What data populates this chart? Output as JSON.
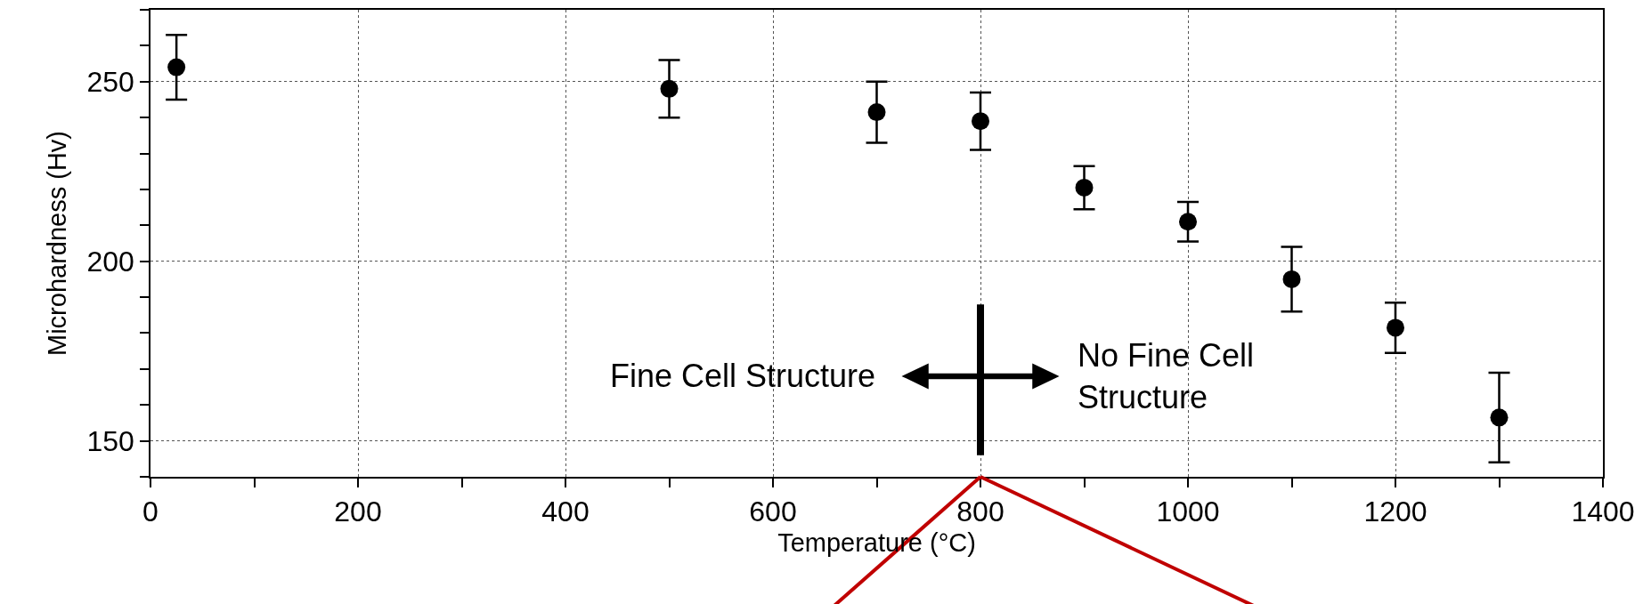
{
  "chart_data": {
    "type": "scatter",
    "xlabel": "Temperature (°C)",
    "ylabel": "Microhardness (Hv)",
    "x": [
      25,
      500,
      700,
      800,
      900,
      1000,
      1100,
      1200,
      1300
    ],
    "values": [
      254,
      248,
      241.5,
      239,
      220.5,
      211,
      195,
      181.5,
      156.5
    ],
    "errors": [
      9,
      8,
      8.5,
      8,
      6,
      5.5,
      9,
      7,
      12.5
    ],
    "color": "#000000",
    "marker": "circle",
    "xlim": [
      0,
      1400
    ],
    "ylim": [
      140,
      270
    ],
    "xticks": [
      0,
      {
        "value": 100,
        "label": null
      },
      200,
      {
        "value": 300,
        "label": null
      },
      400,
      {
        "value": 500,
        "label": null
      },
      600,
      {
        "value": 700,
        "label": null
      },
      800,
      {
        "value": 900,
        "label": null
      },
      1000,
      {
        "value": 1100,
        "label": null
      },
      1200,
      {
        "value": 1300,
        "label": null
      },
      1400
    ],
    "yticks": [
      {
        "value": 140,
        "label": null
      },
      150,
      {
        "value": 160,
        "label": null
      },
      {
        "value": 170,
        "label": null
      },
      {
        "value": 180,
        "label": null
      },
      {
        "value": 190,
        "label": null
      },
      200,
      {
        "value": 210,
        "label": null
      },
      {
        "value": 220,
        "label": null
      },
      {
        "value": 230,
        "label": null
      },
      {
        "value": 240,
        "label": null
      },
      250,
      {
        "value": 260,
        "label": null
      },
      {
        "value": 270,
        "label": null
      }
    ],
    "grid": true,
    "legend": false,
    "ref_lines": [
      {
        "axis": "x",
        "value": 800,
        "color": "#000000"
      }
    ],
    "annotations": [
      "Fine Cell Structure",
      "No Fine Cell\nStructure"
    ]
  }
}
